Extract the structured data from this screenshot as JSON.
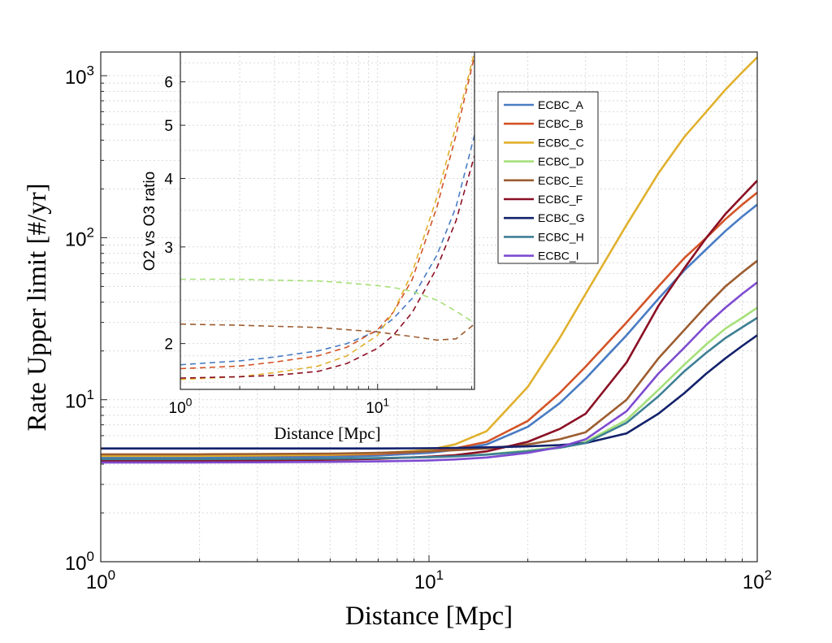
{
  "chart_data": [
    {
      "type": "line",
      "title": "",
      "xlabel": "Distance [Mpc]",
      "ylabel": "Rate Upper limit [#/yr]",
      "xscale": "log",
      "yscale": "log",
      "xlim": [
        1,
        100
      ],
      "ylim": [
        1,
        1400
      ],
      "grid": true,
      "x_ticks": [
        {
          "base": "10",
          "exp": "0"
        },
        {
          "base": "10",
          "exp": "1"
        },
        {
          "base": "10",
          "exp": "2"
        }
      ],
      "y_ticks": [
        {
          "value": 1,
          "base": "10",
          "exp": "0"
        },
        {
          "value": 10,
          "base": "10",
          "exp": "1"
        },
        {
          "value": 100,
          "base": "10",
          "exp": "2"
        },
        {
          "value": 1000,
          "base": "10",
          "exp": "3"
        }
      ],
      "x": [
        1,
        2,
        3,
        5,
        7,
        10,
        12,
        15,
        20,
        25,
        30,
        40,
        50,
        60,
        70,
        80,
        90,
        100
      ],
      "series": [
        {
          "name": "ECBC_A",
          "color": "#4a7cc3",
          "values": [
            4.4,
            4.4,
            4.42,
            4.45,
            4.52,
            4.7,
            4.9,
            5.3,
            6.8,
            9.5,
            13.5,
            25,
            42,
            63,
            85,
            110,
            135,
            160
          ]
        },
        {
          "name": "ECBC_B",
          "color": "#d35428",
          "values": [
            4.5,
            4.5,
            4.52,
            4.56,
            4.63,
            4.8,
            5.0,
            5.5,
            7.4,
            11,
            16,
            30,
            50,
            75,
            100,
            130,
            160,
            190
          ]
        },
        {
          "name": "ECBC_C",
          "color": "#e0b12d",
          "values": [
            4.5,
            4.5,
            4.53,
            4.58,
            4.67,
            4.9,
            5.3,
            6.4,
            12,
            24,
            45,
            120,
            250,
            420,
            600,
            820,
            1050,
            1300
          ]
        },
        {
          "name": "ECBC_D",
          "color": "#a6e07a",
          "values": [
            4.3,
            4.3,
            4.31,
            4.33,
            4.36,
            4.42,
            4.48,
            4.6,
            4.85,
            5.1,
            5.5,
            7.5,
            11.5,
            16.5,
            22,
            27.5,
            32,
            37
          ]
        },
        {
          "name": "ECBC_E",
          "color": "#9d5d30",
          "values": [
            4.6,
            4.6,
            4.62,
            4.65,
            4.7,
            4.8,
            4.88,
            5.0,
            5.3,
            5.7,
            6.3,
            10,
            18,
            27,
            38,
            50,
            61,
            72
          ]
        },
        {
          "name": "ECBC_F",
          "color": "#8b1024",
          "values": [
            4.2,
            4.2,
            4.22,
            4.26,
            4.32,
            4.45,
            4.55,
            4.8,
            5.5,
            6.6,
            8.2,
            17,
            38,
            65,
            100,
            140,
            180,
            225
          ]
        },
        {
          "name": "ECBC_G",
          "color": "#13216b",
          "values": [
            5.0,
            5.0,
            5.0,
            5.0,
            5.0,
            5.02,
            5.04,
            5.08,
            5.15,
            5.25,
            5.4,
            6.2,
            8.2,
            11,
            14.5,
            18,
            21.5,
            25
          ]
        },
        {
          "name": "ECBC_H",
          "color": "#3f7f95",
          "values": [
            4.3,
            4.3,
            4.31,
            4.33,
            4.36,
            4.42,
            4.47,
            4.58,
            4.8,
            5.05,
            5.4,
            7.2,
            10.5,
            15,
            19.5,
            24,
            28,
            32
          ]
        },
        {
          "name": "ECBC_I",
          "color": "#7e4bd1",
          "values": [
            4.1,
            4.1,
            4.11,
            4.13,
            4.16,
            4.22,
            4.28,
            4.4,
            4.7,
            5.1,
            5.7,
            8.5,
            14.5,
            21,
            29,
            37,
            45,
            53
          ]
        }
      ],
      "legend": "top-right (inside, right of inset)"
    },
    {
      "type": "line",
      "title": "",
      "xlabel": "Distance [Mpc]",
      "ylabel": "O2 vs O3 ratio",
      "xscale": "log",
      "yscale": "log",
      "xlim": [
        1,
        31
      ],
      "ylim": [
        1.65,
        6.8
      ],
      "grid": true,
      "x_ticks": [
        {
          "base": "10",
          "exp": "0"
        },
        {
          "base": "10",
          "exp": "1"
        }
      ],
      "y_ticks": [
        2,
        3,
        4,
        5,
        6
      ],
      "line_style": "dashed",
      "x": [
        1,
        2,
        3,
        5,
        7,
        10,
        12,
        15,
        20,
        25,
        31
      ],
      "series": [
        {
          "color": "#4a7cc3",
          "values": [
            1.83,
            1.86,
            1.89,
            1.94,
            2.0,
            2.11,
            2.22,
            2.42,
            2.9,
            3.55,
            4.8
          ]
        },
        {
          "color": "#d35428",
          "values": [
            1.8,
            1.82,
            1.85,
            1.9,
            1.97,
            2.12,
            2.28,
            2.62,
            3.55,
            4.8,
            6.7
          ]
        },
        {
          "color": "#e0b12d",
          "values": [
            1.72,
            1.74,
            1.77,
            1.82,
            1.9,
            2.07,
            2.28,
            2.7,
            3.7,
            5.0,
            6.8
          ]
        },
        {
          "color": "#a6e07a",
          "values": [
            2.62,
            2.62,
            2.61,
            2.6,
            2.58,
            2.55,
            2.53,
            2.49,
            2.4,
            2.29,
            2.18
          ]
        },
        {
          "color": "#9d5d30",
          "values": [
            2.17,
            2.16,
            2.15,
            2.14,
            2.12,
            2.1,
            2.08,
            2.06,
            2.03,
            2.04,
            2.17
          ]
        },
        {
          "color": "#8b1024",
          "values": [
            1.73,
            1.74,
            1.75,
            1.78,
            1.84,
            1.96,
            2.07,
            2.28,
            2.75,
            3.35,
            4.4
          ]
        }
      ]
    }
  ]
}
